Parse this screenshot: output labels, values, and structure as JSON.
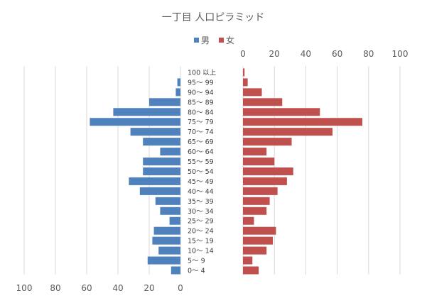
{
  "chart_data": {
    "type": "bar",
    "title": "一丁目 人口ピラミッド",
    "legend_position": "top",
    "grid": true,
    "categories": [
      "100 以上",
      "95～ 99",
      "90～ 94",
      "85～ 89",
      "80～ 84",
      "75～ 79",
      "70～ 74",
      "65～ 69",
      "60～ 64",
      "55～ 59",
      "50～ 54",
      "45～ 49",
      "40～ 44",
      "35～ 39",
      "30～ 34",
      "25～ 29",
      "20～ 24",
      "15～ 19",
      "10～ 14",
      "5～ 9",
      "0～ 4"
    ],
    "series": [
      {
        "name": "男",
        "color": "#4f81bd",
        "values": [
          0,
          2,
          3,
          20,
          43,
          58,
          32,
          24,
          13,
          24,
          24,
          33,
          26,
          16,
          13,
          7,
          17,
          18,
          14,
          21,
          6
        ]
      },
      {
        "name": "女",
        "color": "#c0504d",
        "values": [
          1,
          3,
          12,
          25,
          49,
          76,
          57,
          31,
          15,
          20,
          32,
          28,
          22,
          17,
          15,
          7,
          21,
          19,
          15,
          6,
          10
        ]
      }
    ],
    "male_axis": {
      "ticks": [
        100,
        80,
        60,
        40,
        20,
        0
      ],
      "range": [
        0,
        100
      ]
    },
    "female_axis": {
      "ticks": [
        0,
        20,
        40,
        60,
        80,
        100
      ],
      "range": [
        0,
        100
      ]
    }
  }
}
